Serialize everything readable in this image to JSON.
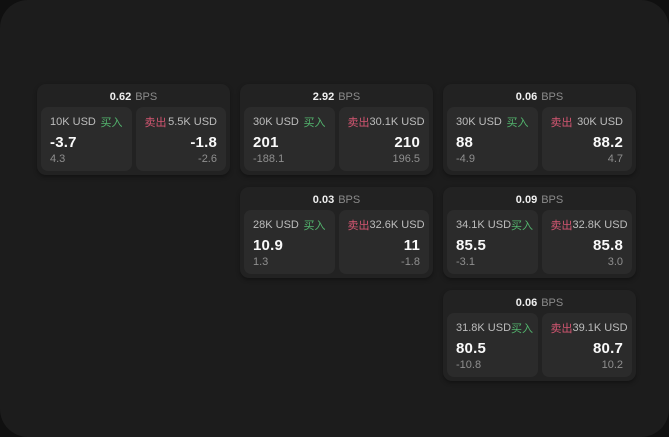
{
  "labels": {
    "bps": "BPS",
    "buy": "买入",
    "sell": "卖出"
  },
  "colors": {
    "buy_green": "#53b56e",
    "sell_red": "#d45672",
    "page_background": "#1c1c1c",
    "card_background": "#222222",
    "panel_background": "#2b2b2b"
  },
  "cards": [
    {
      "row": 1,
      "col": 1,
      "bps": "0.62",
      "buy": {
        "amount": "10K USD",
        "value": "-3.7",
        "sub": "4.3"
      },
      "sell": {
        "amount": "5.5K USD",
        "value": "-1.8",
        "sub": "-2.6"
      }
    },
    {
      "row": 1,
      "col": 2,
      "bps": "2.92",
      "buy": {
        "amount": "30K USD",
        "value": "201",
        "sub": "-188.1"
      },
      "sell": {
        "amount": "30.1K USD",
        "value": "210",
        "sub": "196.5"
      }
    },
    {
      "row": 1,
      "col": 3,
      "bps": "0.06",
      "buy": {
        "amount": "30K USD",
        "value": "88",
        "sub": "-4.9"
      },
      "sell": {
        "amount": "30K USD",
        "value": "88.2",
        "sub": "4.7"
      }
    },
    {
      "row": 2,
      "col": 2,
      "bps": "0.03",
      "buy": {
        "amount": "28K USD",
        "value": "10.9",
        "sub": "1.3"
      },
      "sell": {
        "amount": "32.6K USD",
        "value": "11",
        "sub": "-1.8"
      }
    },
    {
      "row": 2,
      "col": 3,
      "bps": "0.09",
      "buy": {
        "amount": "34.1K USD",
        "value": "85.5",
        "sub": "-3.1"
      },
      "sell": {
        "amount": "32.8K USD",
        "value": "85.8",
        "sub": "3.0"
      }
    },
    {
      "row": 3,
      "col": 3,
      "bps": "0.06",
      "buy": {
        "amount": "31.8K USD",
        "value": "80.5",
        "sub": "-10.8"
      },
      "sell": {
        "amount": "39.1K USD",
        "value": "80.7",
        "sub": "10.2"
      }
    }
  ]
}
